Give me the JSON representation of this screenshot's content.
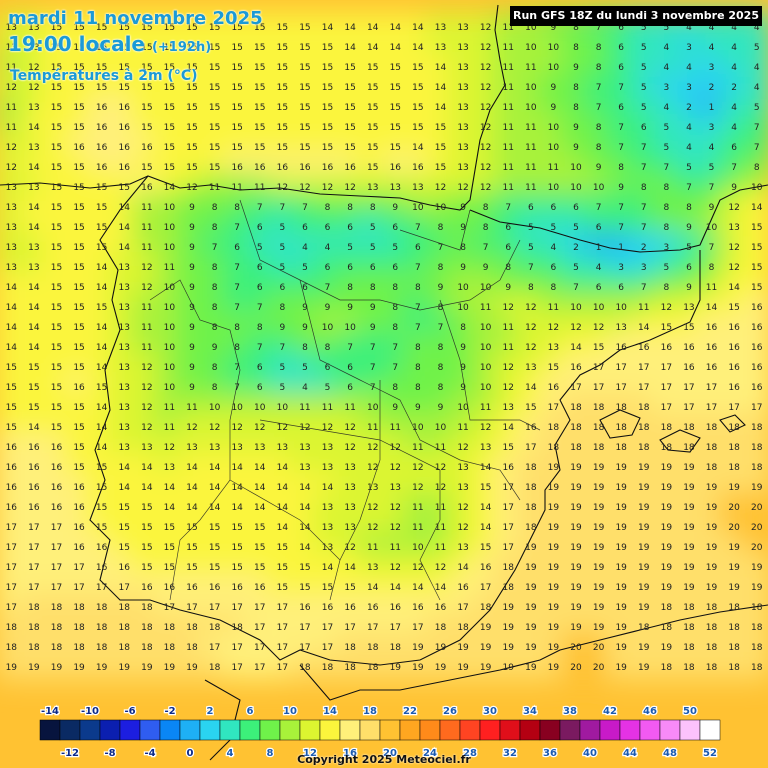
{
  "header": {
    "date": "mardi 11 novembre 2025",
    "local_time": "19:00 locale",
    "lead_time": "(+192h)",
    "variable": "Températures à 2m (°C)",
    "run_info": "Run GFS 18Z du lundi 3 novembre 2025"
  },
  "footer": {
    "copyright": "Copyright 2025 Meteociel.fr"
  },
  "legend": {
    "values": [
      -14,
      -12,
      -10,
      -8,
      -6,
      -4,
      -2,
      0,
      2,
      4,
      6,
      8,
      10,
      12,
      14,
      16,
      18,
      20,
      22,
      24,
      26,
      28,
      30,
      32,
      34,
      36,
      38,
      40,
      42,
      44,
      46,
      48,
      50,
      52
    ],
    "colors": [
      "#07143e",
      "#0a2a63",
      "#0b3a8c",
      "#0b1fb0",
      "#1c1ee0",
      "#2f5df0",
      "#0a86f5",
      "#1eb0f5",
      "#2ad4f0",
      "#30e6c0",
      "#3cf07a",
      "#6ff24a",
      "#a8f23a",
      "#dcf530",
      "#fbf53c",
      "#fff07a",
      "#ffdf6a",
      "#ffc232",
      "#ffa620",
      "#ff8a1a",
      "#ff6a1e",
      "#ff4422",
      "#ff2020",
      "#e00f1a",
      "#b40012",
      "#880020",
      "#7a1a60",
      "#a01aa0",
      "#c81ac8",
      "#e432e4",
      "#f25af2",
      "#f88af8",
      "#fcc2fc",
      "#ffffff"
    ]
  },
  "map": {
    "rows": [
      "13 13 15 15 15 15 15 15 15 15 15 15 15 15 14 14 14 14 14 13 13 12 11 10 9 8 7 6 5 5 4 4 4 4",
      "13 13 15 15 15 15 15 15 15 15 15 15 15 15 15 14 14 14 14 13 13 12 11 10 10 8 8 6 5 4 3 4 4 5",
      "11 12 15 15 15 15 15 15 15 15 15 15 15 15 15 15 15 15 15 14 13 12 11 11 10 9 8 6 5 4 4 3 4 4",
      "12 12 15 15 15 15 15 15 15 15 15 15 15 15 15 15 15 15 15 14 13 12 11 10 9 8 7 7 5 3 3 2 2 4",
      "11 13 15 15 16 16 15 15 15 15 15 15 15 15 15 15 15 15 15 14 13 12 11 10 9 8 7 6 5 4 2 1 4 5",
      "11 14 15 15 16 16 15 15 15 15 15 15 15 15 15 15 15 15 15 15 13 12 11 11 10 9 8 7 6 5 4 3 4 7",
      "12 13 15 16 16 16 16 15 15 15 15 15 15 15 15 15 15 15 14 15 13 12 11 11 10 9 8 7 7 5 4 4 6 7",
      "12 14 15 15 16 16 15 15 15 15 16 16 16 16 16 16 15 16 16 15 13 12 11 11 11 10 9 8 7 7 5 5 7 8",
      "13 13 15 15 15 15 16 14 12 11 11 11 12 12 12 12 13 13 13 12 12 12 11 11 10 10 10 9 8 8 7 7 9 10",
      "13 14 15 15 15 14 11 10 9 8 8 7 7 7 8 8 8 9 10 10 9 8 7 6 6 6 7 7 7 8 8 9 12 14",
      "13 14 15 15 15 14 11 10 9 8 7 6 5 6 6 6 5 6 7 8 9 8 6 5 5 5 6 7 7 8 9 10 13 15",
      "13 13 15 15 15 14 11 10 9 7 6 5 5 4 4 5 5 5 6 7 8 7 6 5 4 2 1 1 2 3 5 7 12 15",
      "13 13 15 15 14 13 12 11 9 8 7 6 5 5 6 6 6 6 7 8 9 9 8 7 6 5 4 3 3 5 6 8 12 15",
      "14 14 15 15 14 13 12 10 9 8 7 6 6 6 7 8 8 8 8 9 10 10 9 8 8 7 6 6 7 8 9 11 14 15",
      "14 14 15 15 15 13 11 10 9 8 7 7 8 9 9 9 9 8 7 8 10 11 12 12 11 10 10 10 11 12 13 14 15 16",
      "14 14 15 15 14 13 11 10 9 8 8 8 9 9 10 10 9 8 7 7 8 10 11 12 12 12 12 13 14 15 15 16 16 16",
      "14 14 15 15 14 13 11 10 9 9 8 7 7 8 8 7 7 7 8 8 9 10 11 12 13 14 15 16 16 16 16 16 16 16",
      "15 15 15 15 14 13 12 10 9 8 7 6 5 5 6 6 7 7 8 8 9 10 12 13 15 16 17 17 17 17 16 16 16 16",
      "15 15 15 16 15 13 12 10 9 8 7 6 5 4 5 6 7 8 8 8 9 10 12 14 16 17 17 17 17 17 17 17 16 16",
      "15 15 15 15 14 13 12 11 11 10 10 10 10 11 11 11 10 9 9 9 10 11 13 15 17 18 18 18 18 17 17 17 17 17",
      "15 14 15 15 14 13 12 11 12 12 12 12 12 12 12 12 11 11 10 10 11 12 14 16 18 18 18 18 18 18 18 18 18 18",
      "16 16 16 15 14 13 13 12 13 13 13 13 13 13 13 12 12 12 11 11 12 13 15 17 18 18 18 18 18 18 18 18 18 18",
      "16 16 16 15 15 14 14 13 14 14 14 14 14 13 13 13 12 12 12 12 13 14 16 18 19 19 19 19 19 19 19 18 18 18",
      "16 16 16 16 15 14 14 14 14 14 14 14 14 14 14 13 13 13 12 12 13 15 17 18 19 19 19 19 19 19 19 19 19 19",
      "16 16 16 16 15 15 15 14 14 14 14 14 14 14 13 13 12 12 11 11 12 14 17 18 19 19 19 19 19 19 19 19 20 20",
      "17 17 17 16 15 15 15 15 15 15 15 15 14 14 13 13 12 12 11 11 12 14 17 18 19 19 19 19 19 19 19 19 20 20",
      "17 17 17 16 16 15 15 15 15 15 15 15 15 14 13 12 11 11 10 11 13 15 17 19 19 19 19 19 19 19 19 19 19 20",
      "17 17 17 17 16 16 15 15 15 15 15 15 15 15 14 14 13 12 12 12 14 16 18 19 19 19 19 19 19 19 19 19 19 19",
      "17 17 17 17 17 17 16 16 16 16 16 16 15 15 15 15 14 14 14 14 16 17 18 19 19 19 19 19 19 19 19 19 19 19",
      "17 18 18 18 18 18 18 17 17 17 17 17 17 16 16 16 16 16 16 16 17 18 19 19 19 19 19 19 19 18 18 18 18 18",
      "18 18 18 18 18 18 18 18 18 18 18 17 17 17 17 17 17 17 17 18 18 19 19 19 19 19 19 19 18 18 18 18 18 18",
      "18 18 18 18 18 18 18 18 18 17 17 17 17 17 17 18 18 18 19 19 19 19 19 19 19 20 20 19 19 19 18 18 18 18",
      "19 19 19 19 19 19 19 19 19 18 17 17 17 18 18 18 18 19 19 19 19 19 19 19 19 20 20 19 19 18 18 18 18 18"
    ]
  }
}
